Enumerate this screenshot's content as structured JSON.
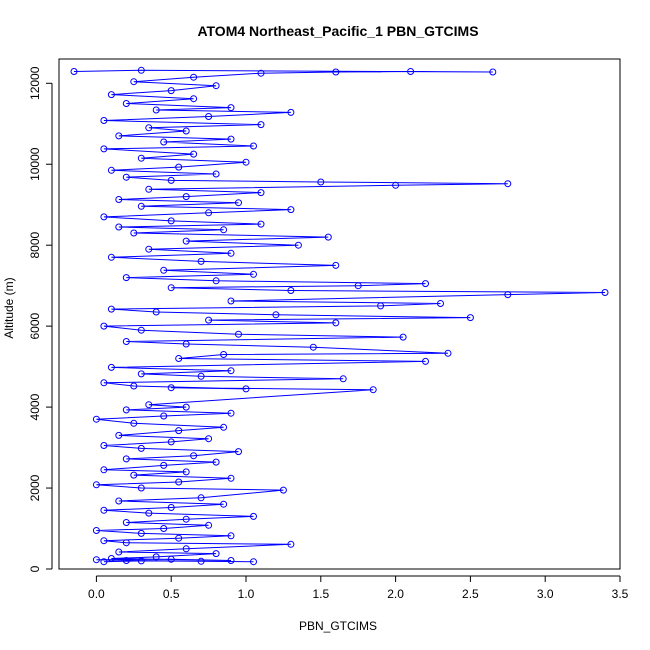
{
  "chart_data": {
    "type": "line",
    "title": "ATOM4 Northeast_Pacific_1 PBN_GTCIMS",
    "xlabel": "PBN_GTCIMS",
    "ylabel": "Altitude (m)",
    "xlim": [
      -0.25,
      3.5
    ],
    "ylim": [
      0,
      12600
    ],
    "xticks": [
      0.0,
      0.5,
      1.0,
      1.5,
      2.0,
      2.5,
      3.0,
      3.5
    ],
    "xtick_labels": [
      "0.0",
      "0.5",
      "1.0",
      "1.5",
      "2.0",
      "2.5",
      "3.0",
      "3.5"
    ],
    "yticks": [
      0,
      2000,
      4000,
      6000,
      8000,
      10000,
      12000
    ],
    "ytick_labels": [
      "0",
      "2000",
      "4000",
      "6000",
      "8000",
      "10000",
      "12000"
    ],
    "grid": false,
    "marker": "open-circle",
    "color": "#0000ff",
    "series": [
      {
        "values": [
          [
            0.05,
            180
          ],
          [
            0.3,
            200
          ],
          [
            0.7,
            190
          ],
          [
            1.05,
            180
          ],
          [
            0.2,
            210
          ],
          [
            0.0,
            230
          ],
          [
            0.5,
            240
          ],
          [
            0.9,
            210
          ],
          [
            0.1,
            260
          ],
          [
            0.4,
            300
          ],
          [
            0.8,
            380
          ],
          [
            0.15,
            420
          ],
          [
            0.6,
            500
          ],
          [
            1.3,
            610
          ],
          [
            0.2,
            650
          ],
          [
            0.05,
            700
          ],
          [
            0.55,
            760
          ],
          [
            0.9,
            820
          ],
          [
            0.3,
            880
          ],
          [
            0.0,
            950
          ],
          [
            0.45,
            1000
          ],
          [
            0.75,
            1080
          ],
          [
            0.2,
            1150
          ],
          [
            0.6,
            1230
          ],
          [
            1.05,
            1300
          ],
          [
            0.35,
            1380
          ],
          [
            0.05,
            1450
          ],
          [
            0.5,
            1520
          ],
          [
            0.85,
            1600
          ],
          [
            0.15,
            1680
          ],
          [
            0.7,
            1760
          ],
          [
            1.25,
            1950
          ],
          [
            0.3,
            2000
          ],
          [
            0.0,
            2080
          ],
          [
            0.55,
            2150
          ],
          [
            0.9,
            2240
          ],
          [
            0.25,
            2320
          ],
          [
            0.6,
            2400
          ],
          [
            0.05,
            2450
          ],
          [
            0.45,
            2560
          ],
          [
            0.8,
            2640
          ],
          [
            0.2,
            2720
          ],
          [
            0.65,
            2800
          ],
          [
            0.95,
            2900
          ],
          [
            0.3,
            2980
          ],
          [
            0.05,
            3050
          ],
          [
            0.5,
            3140
          ],
          [
            0.75,
            3220
          ],
          [
            0.15,
            3300
          ],
          [
            0.55,
            3420
          ],
          [
            0.85,
            3500
          ],
          [
            0.25,
            3600
          ],
          [
            0.0,
            3700
          ],
          [
            0.45,
            3780
          ],
          [
            0.9,
            3850
          ],
          [
            0.2,
            3930
          ],
          [
            0.6,
            4000
          ],
          [
            0.35,
            4060
          ],
          [
            1.85,
            4430
          ],
          [
            0.5,
            4480
          ],
          [
            1.0,
            4450
          ],
          [
            0.25,
            4520
          ],
          [
            0.05,
            4600
          ],
          [
            1.65,
            4700
          ],
          [
            0.7,
            4760
          ],
          [
            0.3,
            4820
          ],
          [
            0.9,
            4900
          ],
          [
            0.1,
            4980
          ],
          [
            2.2,
            5130
          ],
          [
            0.55,
            5200
          ],
          [
            0.85,
            5300
          ],
          [
            2.35,
            5330
          ],
          [
            1.45,
            5480
          ],
          [
            0.6,
            5560
          ],
          [
            0.2,
            5620
          ],
          [
            2.05,
            5730
          ],
          [
            0.95,
            5800
          ],
          [
            0.3,
            5900
          ],
          [
            0.05,
            6000
          ],
          [
            1.6,
            6080
          ],
          [
            0.75,
            6150
          ],
          [
            2.5,
            6210
          ],
          [
            1.2,
            6280
          ],
          [
            0.4,
            6350
          ],
          [
            0.1,
            6420
          ],
          [
            1.9,
            6500
          ],
          [
            2.3,
            6560
          ],
          [
            0.9,
            6620
          ],
          [
            2.75,
            6780
          ],
          [
            3.4,
            6830
          ],
          [
            1.3,
            6880
          ],
          [
            0.5,
            6950
          ],
          [
            1.75,
            7000
          ],
          [
            2.2,
            7050
          ],
          [
            0.8,
            7120
          ],
          [
            0.2,
            7200
          ],
          [
            1.05,
            7280
          ],
          [
            0.45,
            7380
          ],
          [
            1.6,
            7500
          ],
          [
            0.7,
            7600
          ],
          [
            0.1,
            7700
          ],
          [
            0.9,
            7800
          ],
          [
            0.35,
            7900
          ],
          [
            1.35,
            8000
          ],
          [
            0.6,
            8100
          ],
          [
            1.55,
            8200
          ],
          [
            0.25,
            8300
          ],
          [
            0.85,
            8380
          ],
          [
            0.15,
            8450
          ],
          [
            1.1,
            8520
          ],
          [
            0.5,
            8600
          ],
          [
            0.05,
            8700
          ],
          [
            0.75,
            8800
          ],
          [
            1.3,
            8880
          ],
          [
            0.3,
            8960
          ],
          [
            0.95,
            9050
          ],
          [
            0.15,
            9130
          ],
          [
            0.6,
            9200
          ],
          [
            1.1,
            9300
          ],
          [
            0.35,
            9380
          ],
          [
            2.0,
            9480
          ],
          [
            2.75,
            9520
          ],
          [
            1.5,
            9560
          ],
          [
            0.5,
            9600
          ],
          [
            0.2,
            9680
          ],
          [
            0.8,
            9760
          ],
          [
            0.1,
            9850
          ],
          [
            0.55,
            9930
          ],
          [
            1.0,
            10050
          ],
          [
            0.3,
            10150
          ],
          [
            0.65,
            10250
          ],
          [
            0.05,
            10380
          ],
          [
            1.05,
            10450
          ],
          [
            0.45,
            10550
          ],
          [
            0.9,
            10620
          ],
          [
            0.15,
            10700
          ],
          [
            0.6,
            10820
          ],
          [
            0.35,
            10900
          ],
          [
            1.1,
            10980
          ],
          [
            0.05,
            11080
          ],
          [
            0.75,
            11180
          ],
          [
            1.3,
            11280
          ],
          [
            0.4,
            11340
          ],
          [
            0.9,
            11400
          ],
          [
            0.2,
            11500
          ],
          [
            0.65,
            11620
          ],
          [
            0.1,
            11720
          ],
          [
            0.5,
            11820
          ],
          [
            0.8,
            11940
          ],
          [
            0.25,
            12040
          ],
          [
            0.65,
            12150
          ],
          [
            1.1,
            12250
          ],
          [
            1.6,
            12280
          ],
          [
            2.1,
            12290
          ],
          [
            2.65,
            12280
          ],
          [
            0.3,
            12320
          ],
          [
            -0.15,
            12290
          ]
        ]
      }
    ]
  }
}
